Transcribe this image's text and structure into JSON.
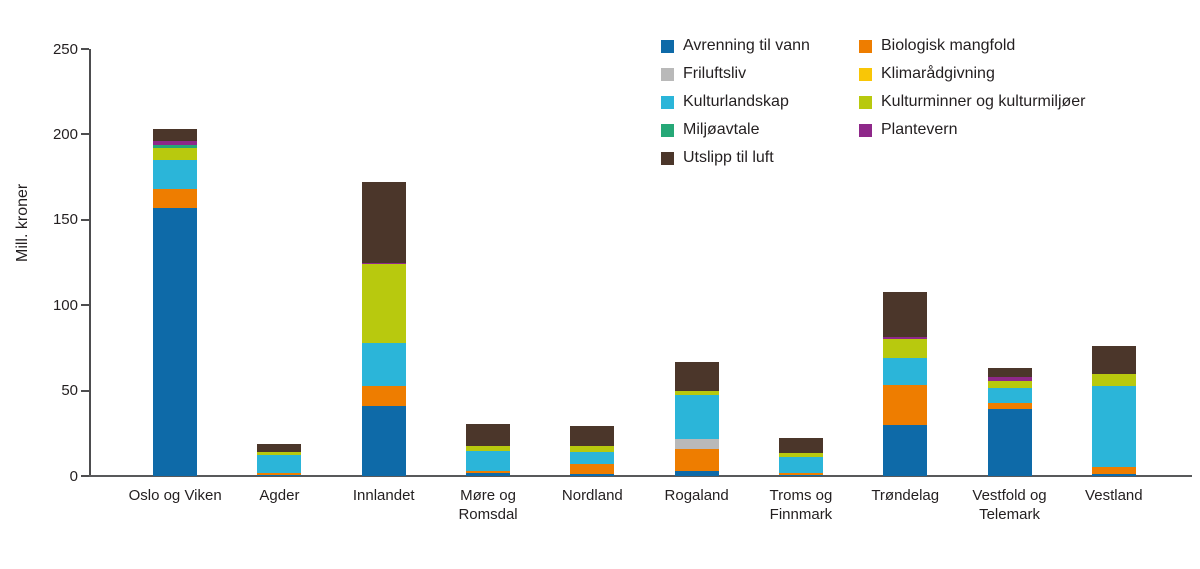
{
  "chart_data": {
    "type": "bar",
    "stacked": true,
    "title": "",
    "xlabel": "",
    "ylabel": "Mill. kroner",
    "ylim": [
      0,
      250
    ],
    "yticks": [
      0,
      50,
      100,
      150,
      200,
      250
    ],
    "grid": false,
    "legend_position": "top-right",
    "categories": [
      "Oslo og Viken",
      "Agder",
      "Innlandet",
      "Møre og\nRomsdal",
      "Nordland",
      "Rogaland",
      "Troms og\nFinnmark",
      "Trøndelag",
      "Vestfold og\nTelemark",
      "Vestland"
    ],
    "series": [
      {
        "name": "Avrenning til vann",
        "color": "#0e6aa8",
        "values": [
          157,
          0.5,
          41,
          1.5,
          1,
          3,
          0.5,
          30,
          39,
          1
        ]
      },
      {
        "name": "Biologisk mangfold",
        "color": "#ee7d00",
        "values": [
          11,
          1.5,
          12,
          1.5,
          6,
          13,
          1.5,
          23,
          3.5,
          4
        ]
      },
      {
        "name": "Friluftsliv",
        "color": "#b9b9b9",
        "values": [
          0,
          0,
          0,
          0,
          0,
          5.5,
          0,
          0,
          0,
          0
        ]
      },
      {
        "name": "Klimarådgivning",
        "color": "#f9c606",
        "values": [
          0,
          0,
          0,
          0,
          0,
          0,
          0,
          0,
          0,
          0
        ]
      },
      {
        "name": "Kulturlandskap",
        "color": "#2bb5d9",
        "values": [
          17,
          10.5,
          25,
          11.5,
          7,
          26,
          9,
          16,
          9,
          48
        ]
      },
      {
        "name": "Kulturminner og kulturmiljøer",
        "color": "#b8c90e",
        "values": [
          7,
          1.5,
          46,
          3,
          3.5,
          2.5,
          2.5,
          11,
          4,
          7
        ]
      },
      {
        "name": "Miljøavtale",
        "color": "#26a877",
        "values": [
          2,
          0,
          0,
          0,
          0,
          0,
          0,
          0,
          0,
          0
        ]
      },
      {
        "name": "Plantevern",
        "color": "#8e2889",
        "values": [
          2,
          0,
          1,
          0,
          0,
          0,
          0,
          1.5,
          2.5,
          0
        ]
      },
      {
        "name": "Utslipp til luft",
        "color": "#4b362a",
        "values": [
          7,
          4.5,
          47,
          13,
          12,
          16.5,
          9,
          26,
          5,
          16
        ]
      }
    ]
  }
}
